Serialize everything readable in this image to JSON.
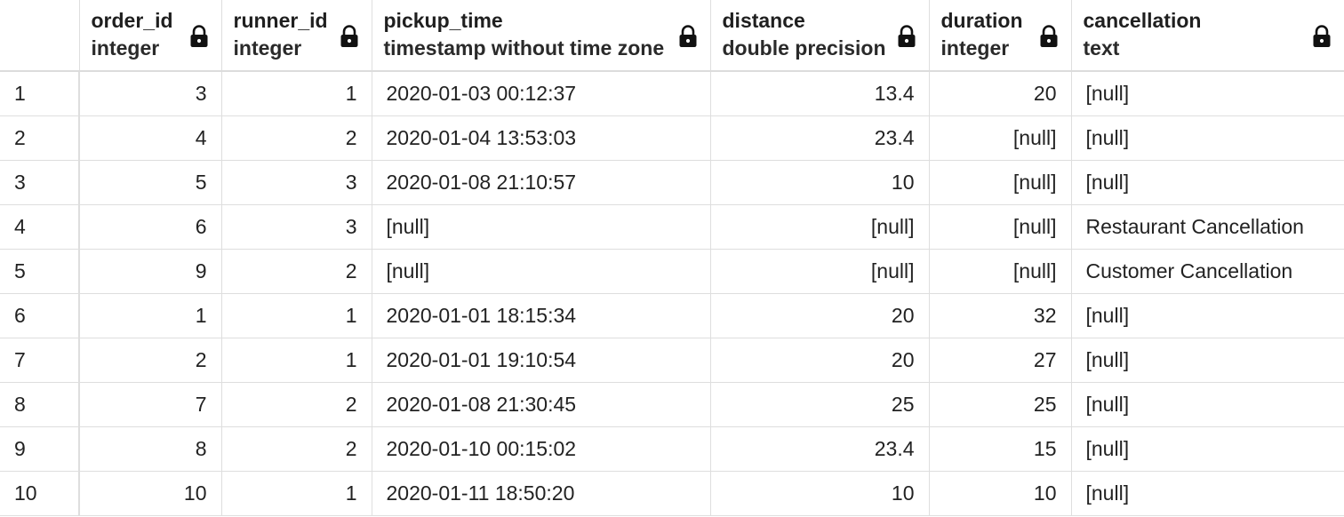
{
  "columns": [
    {
      "name": "order_id",
      "type": "integer",
      "align": "right"
    },
    {
      "name": "runner_id",
      "type": "integer",
      "align": "right"
    },
    {
      "name": "pickup_time",
      "type": "timestamp without time zone",
      "align": "left"
    },
    {
      "name": "distance",
      "type": "double precision",
      "align": "right"
    },
    {
      "name": "duration",
      "type": "integer",
      "align": "right"
    },
    {
      "name": "cancellation",
      "type": "text",
      "align": "left"
    }
  ],
  "rows": [
    {
      "n": "1",
      "cells": [
        "3",
        "1",
        "2020-01-03 00:12:37",
        "13.4",
        "20",
        "[null]"
      ]
    },
    {
      "n": "2",
      "cells": [
        "4",
        "2",
        "2020-01-04 13:53:03",
        "23.4",
        "[null]",
        "[null]"
      ]
    },
    {
      "n": "3",
      "cells": [
        "5",
        "3",
        "2020-01-08 21:10:57",
        "10",
        "[null]",
        "[null]"
      ]
    },
    {
      "n": "4",
      "cells": [
        "6",
        "3",
        "[null]",
        "[null]",
        "[null]",
        "Restaurant Cancellation"
      ]
    },
    {
      "n": "5",
      "cells": [
        "9",
        "2",
        "[null]",
        "[null]",
        "[null]",
        "Customer Cancellation"
      ]
    },
    {
      "n": "6",
      "cells": [
        "1",
        "1",
        "2020-01-01 18:15:34",
        "20",
        "32",
        "[null]"
      ]
    },
    {
      "n": "7",
      "cells": [
        "2",
        "1",
        "2020-01-01 19:10:54",
        "20",
        "27",
        "[null]"
      ]
    },
    {
      "n": "8",
      "cells": [
        "7",
        "2",
        "2020-01-08 21:30:45",
        "25",
        "25",
        "[null]"
      ]
    },
    {
      "n": "9",
      "cells": [
        "8",
        "2",
        "2020-01-10 00:15:02",
        "23.4",
        "15",
        "[null]"
      ]
    },
    {
      "n": "10",
      "cells": [
        "10",
        "1",
        "2020-01-11 18:50:20",
        "10",
        "10",
        "[null]"
      ]
    }
  ],
  "icons": {
    "column_lock": "lock-icon"
  },
  "colors": {
    "grid_line": "#dedede",
    "text": "#222222",
    "background": "#ffffff"
  }
}
